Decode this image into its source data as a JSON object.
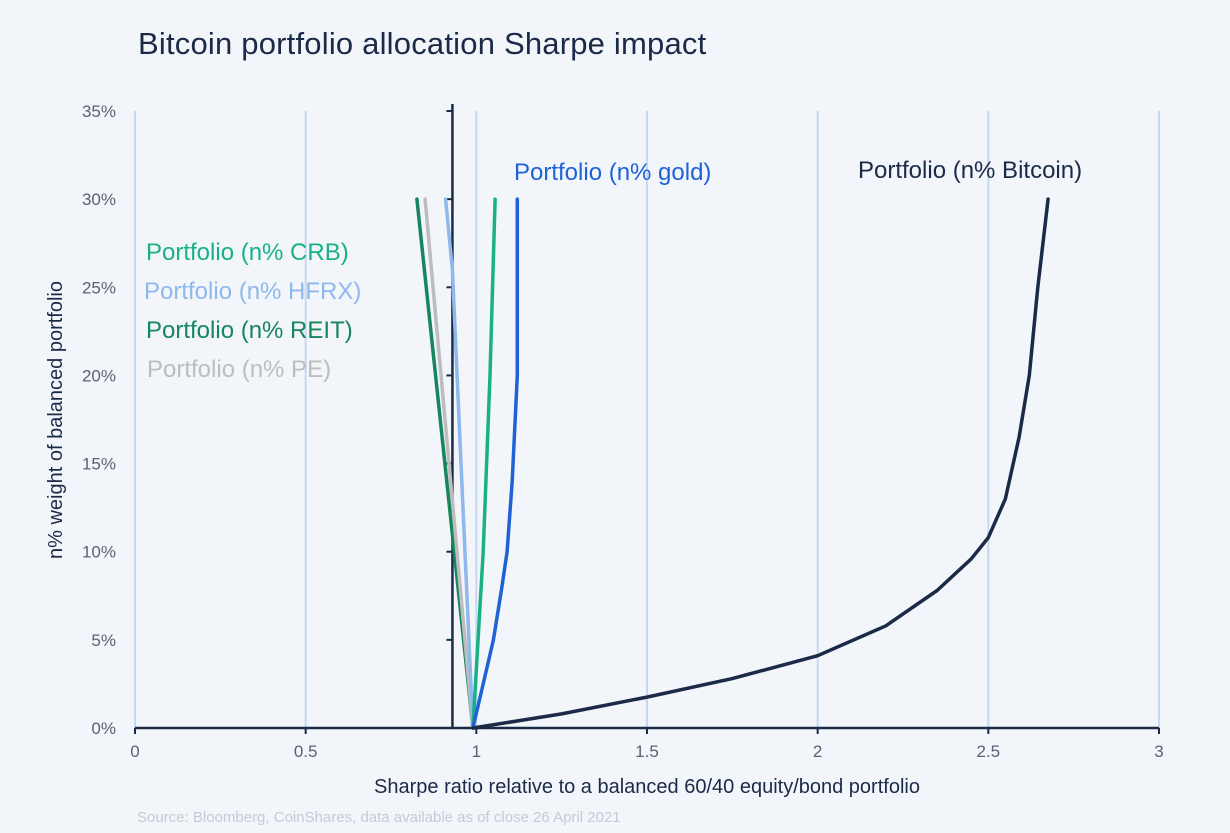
{
  "title": "Bitcoin portfolio allocation Sharpe impact",
  "source": "Source: Bloomberg, CoinShares, data available as of close 26 April 2021",
  "chart_data": {
    "type": "line",
    "title": "Bitcoin portfolio allocation Sharpe impact",
    "xlabel": "Sharpe ratio relative to a balanced 60/40 equity/bond portfolio",
    "ylabel": "n% weight of balanced portfolio",
    "xlim": [
      0,
      3
    ],
    "ylim": [
      0,
      35
    ],
    "x_ticks": [
      "0",
      "0.5",
      "1",
      "1.5",
      "2",
      "2.5",
      "3"
    ],
    "x_tick_values": [
      0,
      0.5,
      1,
      1.5,
      2,
      2.5,
      3
    ],
    "y_ticks": [
      "0%",
      "5%",
      "10%",
      "15%",
      "20%",
      "25%",
      "30%",
      "35%"
    ],
    "y_tick_values": [
      0,
      5,
      10,
      15,
      20,
      25,
      30,
      35
    ],
    "y_axis_crosses_x": 0.93,
    "grid": "vertical",
    "grid_color": "#c5d9f2",
    "series": [
      {
        "name": "Portfolio (n% Bitcoin)",
        "color": "#1b2a47",
        "points": [
          [
            0.99,
            0
          ],
          [
            1.25,
            0.8
          ],
          [
            1.5,
            1.75
          ],
          [
            1.75,
            2.8
          ],
          [
            2.0,
            4.1
          ],
          [
            2.2,
            5.8
          ],
          [
            2.35,
            7.8
          ],
          [
            2.45,
            9.6
          ],
          [
            2.5,
            10.8
          ],
          [
            2.55,
            13
          ],
          [
            2.59,
            16.5
          ],
          [
            2.62,
            20
          ],
          [
            2.645,
            25
          ],
          [
            2.675,
            30
          ]
        ]
      },
      {
        "name": "Portfolio (n% gold)",
        "color": "#1f62d6",
        "points": [
          [
            0.99,
            0
          ],
          [
            1.02,
            2.5
          ],
          [
            1.05,
            5
          ],
          [
            1.075,
            8
          ],
          [
            1.09,
            10
          ],
          [
            1.105,
            14
          ],
          [
            1.115,
            18
          ],
          [
            1.12,
            20
          ],
          [
            1.12,
            30
          ]
        ]
      },
      {
        "name": "Portfolio (n% CRB)",
        "color": "#1ab086",
        "points": [
          [
            0.99,
            0
          ],
          [
            1.02,
            10
          ],
          [
            1.04,
            20
          ],
          [
            1.055,
            30
          ]
        ]
      },
      {
        "name": "Portfolio (n% HFRX)",
        "color": "#8fb8ec",
        "points": [
          [
            0.99,
            0
          ],
          [
            0.955,
            15
          ],
          [
            0.93,
            26
          ],
          [
            0.91,
            30
          ]
        ]
      },
      {
        "name": "Portfolio (n% REIT)",
        "color": "#17855e",
        "points": [
          [
            0.99,
            0
          ],
          [
            0.826,
            30
          ]
        ]
      },
      {
        "name": "Portfolio (n% PE)",
        "color": "#bdbdbd",
        "points": [
          [
            0.99,
            0
          ],
          [
            0.85,
            30
          ]
        ]
      }
    ]
  }
}
